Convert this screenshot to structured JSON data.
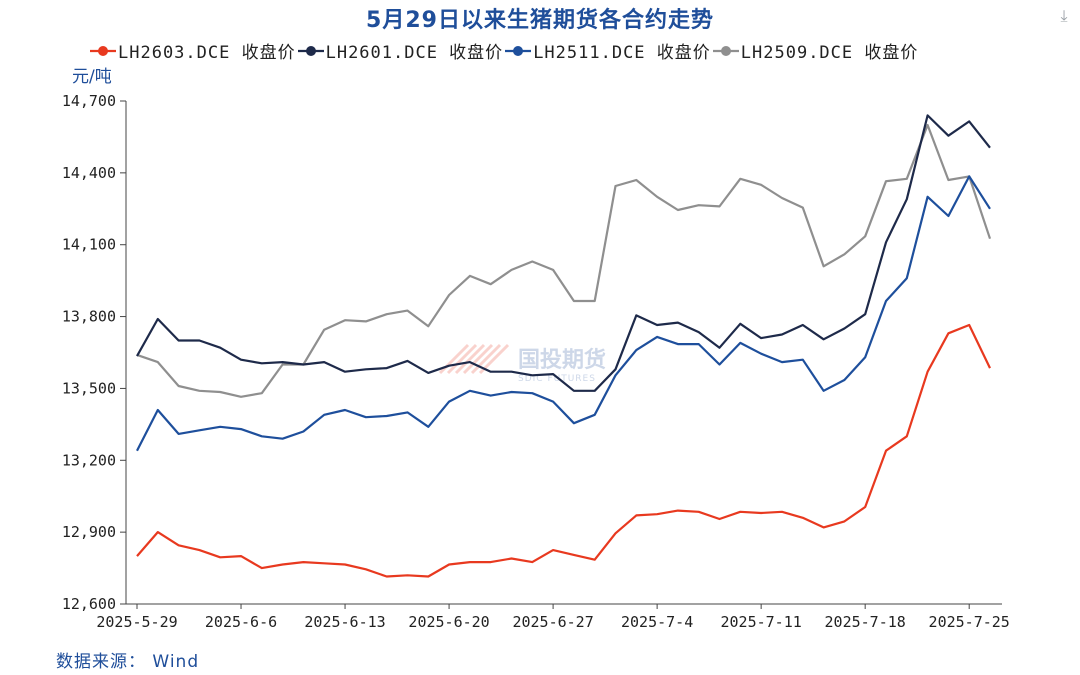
{
  "title": "5月29日以来生猪期货各合约走势",
  "download_icon": "download-icon",
  "y_unit": "元/吨",
  "source": "数据来源： Wind",
  "watermark": {
    "cn": "国投期货",
    "en": "SDIC FUTURES"
  },
  "chart_data": {
    "type": "line",
    "x": [
      "2025-5-29",
      "2025-5-30",
      "2025-6-3",
      "2025-6-4",
      "2025-6-5",
      "2025-6-6",
      "2025-6-9",
      "2025-6-10",
      "2025-6-11",
      "2025-6-12",
      "2025-6-13",
      "2025-6-16",
      "2025-6-17",
      "2025-6-18",
      "2025-6-19",
      "2025-6-20",
      "2025-6-23",
      "2025-6-24",
      "2025-6-25",
      "2025-6-26",
      "2025-6-27",
      "2025-6-30",
      "2025-7-1",
      "2025-7-2",
      "2025-7-3",
      "2025-7-4",
      "2025-7-7",
      "2025-7-8",
      "2025-7-9",
      "2025-7-10",
      "2025-7-11",
      "2025-7-14",
      "2025-7-15",
      "2025-7-16",
      "2025-7-17",
      "2025-7-18",
      "2025-7-21",
      "2025-7-22",
      "2025-7-23",
      "2025-7-24",
      "2025-7-25",
      "2025-7-28"
    ],
    "xticks": [
      "2025-5-29",
      "2025-6-6",
      "2025-6-13",
      "2025-6-20",
      "2025-6-27",
      "2025-7-4",
      "2025-7-11",
      "2025-7-18",
      "2025-7-25"
    ],
    "ylim": [
      12600,
      14700
    ],
    "yticks": [
      "12,600",
      "12,900",
      "13,200",
      "13,500",
      "13,800",
      "14,100",
      "14,400",
      "14,700"
    ],
    "grid": false,
    "legend_position": "top",
    "series": [
      {
        "name": "LH2603.DCE 收盘价",
        "color": "#e8391f",
        "values": [
          12800,
          12900,
          12845,
          12825,
          12795,
          12800,
          12750,
          12765,
          12775,
          12770,
          12765,
          12745,
          12715,
          12720,
          12715,
          12765,
          12775,
          12775,
          12790,
          12775,
          12825,
          12805,
          12785,
          12895,
          12970,
          12975,
          12990,
          12985,
          12955,
          12985,
          12980,
          12985,
          12960,
          12920,
          12945,
          13005,
          13240,
          13300,
          13570,
          13730,
          13765,
          13585
        ]
      },
      {
        "name": "LH2601.DCE 收盘价",
        "color": "#1e2a4a",
        "values": [
          13635,
          13790,
          13700,
          13700,
          13670,
          13620,
          13605,
          13610,
          13600,
          13610,
          13570,
          13580,
          13585,
          13615,
          13565,
          13595,
          13610,
          13570,
          13570,
          13555,
          13560,
          13490,
          13490,
          13580,
          13805,
          13765,
          13775,
          13735,
          13670,
          13770,
          13710,
          13725,
          13765,
          13705,
          13750,
          13810,
          14110,
          14290,
          14640,
          14555,
          14615,
          14505
        ]
      },
      {
        "name": "LH2511.DCE 收盘价",
        "color": "#1e4f9c",
        "values": [
          13240,
          13410,
          13310,
          13325,
          13340,
          13330,
          13300,
          13290,
          13320,
          13390,
          13410,
          13380,
          13385,
          13400,
          13340,
          13445,
          13490,
          13470,
          13485,
          13480,
          13445,
          13355,
          13390,
          13555,
          13660,
          13715,
          13685,
          13685,
          13600,
          13690,
          13645,
          13610,
          13620,
          13490,
          13535,
          13630,
          13865,
          13960,
          14300,
          14220,
          14385,
          14250
        ]
      },
      {
        "name": "LH2509.DCE 收盘价",
        "color": "#8f8f8f",
        "values": [
          13640,
          13610,
          13510,
          13490,
          13485,
          13465,
          13480,
          13600,
          13600,
          13745,
          13785,
          13780,
          13810,
          13825,
          13760,
          13890,
          13970,
          13935,
          13995,
          14030,
          13995,
          13865,
          13865,
          14345,
          14370,
          14300,
          14245,
          14265,
          14260,
          14375,
          14350,
          14295,
          14255,
          14010,
          14060,
          14135,
          14365,
          14375,
          14600,
          14370,
          14385,
          14125
        ]
      }
    ]
  }
}
